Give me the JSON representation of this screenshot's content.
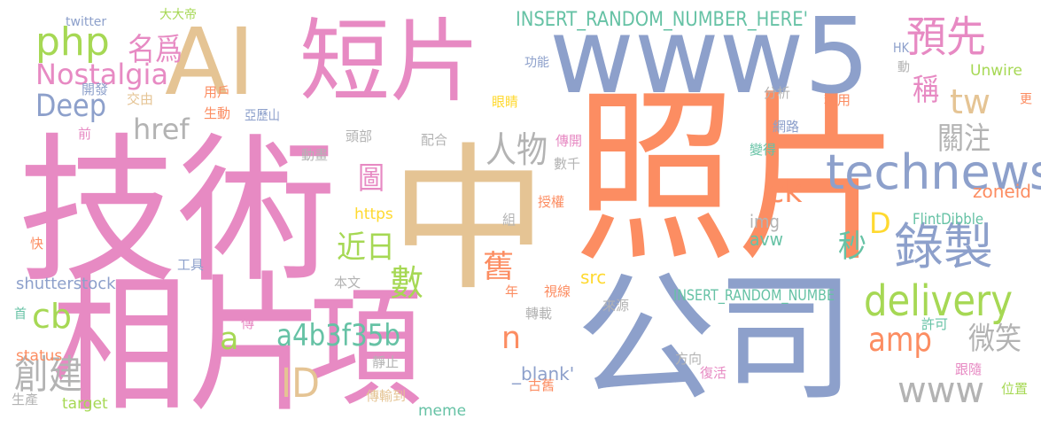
{
  "colors": {
    "pink": "#e78ac3",
    "blue": "#8da0cb",
    "orange": "#fc8d62",
    "green": "#66c2a5",
    "lime": "#a6d854",
    "yellow": "#ffd92f",
    "tan": "#e5c494",
    "gray": "#b3b3b3"
  },
  "words": [
    {
      "text": "照片",
      "color": "orange",
      "vertical": false
    },
    {
      "text": "技術",
      "color": "pink",
      "vertical": false
    },
    {
      "text": "中",
      "color": "tan",
      "vertical": false
    },
    {
      "text": "相片",
      "color": "pink",
      "vertical": false
    },
    {
      "text": "www5",
      "color": "blue",
      "vertical": false
    },
    {
      "text": "AI",
      "color": "tan",
      "vertical": false
    },
    {
      "text": "短片",
      "color": "pink",
      "vertical": false
    },
    {
      "text": "公司",
      "color": "blue",
      "vertical": false
    },
    {
      "text": "項",
      "color": "pink",
      "vertical": false
    },
    {
      "text": "technews",
      "color": "blue",
      "vertical": false
    },
    {
      "text": "delivery",
      "color": "lime",
      "vertical": false
    },
    {
      "text": "錄製",
      "color": "blue",
      "vertical": false
    },
    {
      "text": "預先",
      "color": "pink",
      "vertical": false
    },
    {
      "text": "www",
      "color": "gray",
      "vertical": false
    },
    {
      "text": "php",
      "color": "lime",
      "vertical": false
    },
    {
      "text": "Nostalgia",
      "color": "pink",
      "vertical": false
    },
    {
      "text": "人物",
      "color": "gray",
      "vertical": false
    },
    {
      "text": "amp",
      "color": "orange",
      "vertical": false
    },
    {
      "text": "名爲",
      "color": "pink",
      "vertical": false
    },
    {
      "text": "Deep",
      "color": "blue",
      "vertical": false
    },
    {
      "text": "href",
      "color": "gray",
      "vertical": false
    },
    {
      "text": "tw",
      "color": "tan",
      "vertical": false
    },
    {
      "text": "關注",
      "color": "gray",
      "vertical": false
    },
    {
      "text": "D",
      "color": "yellow",
      "vertical": false
    },
    {
      "text": "a4b3f35b",
      "color": "green",
      "vertical": false
    },
    {
      "text": "ID",
      "color": "tan",
      "vertical": false
    },
    {
      "text": "cb",
      "color": "lime",
      "vertical": false
    },
    {
      "text": "創建",
      "color": "gray",
      "vertical": false
    },
    {
      "text": "ck",
      "color": "orange",
      "vertical": false
    },
    {
      "text": "近日",
      "color": "lime",
      "vertical": false
    },
    {
      "text": "微笑",
      "color": "gray",
      "vertical": false
    },
    {
      "text": "稱",
      "color": "pink",
      "vertical": false
    },
    {
      "text": "數",
      "color": "lime",
      "vertical": false
    },
    {
      "text": "舊",
      "color": "orange",
      "vertical": false
    },
    {
      "text": "圖",
      "color": "pink",
      "vertical": false
    },
    {
      "text": "秒",
      "color": "green",
      "vertical": false
    },
    {
      "text": "n",
      "color": "orange",
      "vertical": false
    },
    {
      "text": "a",
      "color": "lime",
      "vertical": false
    },
    {
      "text": "INSERT_RANDOM_NUMBER_HERE'",
      "color": "green",
      "vertical": false
    },
    {
      "text": "INSERT_RANDOM_NUMBE",
      "color": "green",
      "vertical": false
    },
    {
      "text": "shutterstock",
      "color": "blue",
      "vertical": false
    },
    {
      "text": "zoneid",
      "color": "orange",
      "vertical": false
    },
    {
      "text": "img",
      "color": "gray",
      "vertical": false
    },
    {
      "text": "avw",
      "color": "green",
      "vertical": false
    },
    {
      "text": "src",
      "color": "yellow",
      "vertical": false
    },
    {
      "text": "_blank'",
      "color": "blue",
      "vertical": false
    },
    {
      "text": "target",
      "color": "lime",
      "vertical": false
    },
    {
      "text": "status",
      "color": "orange",
      "vertical": false
    },
    {
      "text": "meme",
      "color": "green",
      "vertical": false
    },
    {
      "text": "https",
      "color": "yellow",
      "vertical": false
    },
    {
      "text": "twitter",
      "color": "blue",
      "vertical": false
    },
    {
      "text": "Unwire",
      "color": "lime",
      "vertical": false
    },
    {
      "text": "FlintDibble",
      "color": "green",
      "vertical": false
    },
    {
      "text": "HK",
      "color": "blue",
      "vertical": false
    },
    {
      "text": "大大帝",
      "color": "lime",
      "vertical": false
    },
    {
      "text": "功能",
      "color": "blue",
      "vertical": false
    },
    {
      "text": "用戶",
      "color": "orange",
      "vertical": false
    },
    {
      "text": "開發",
      "color": "blue",
      "vertical": false
    },
    {
      "text": "交由",
      "color": "tan",
      "vertical": false
    },
    {
      "text": "眼睛",
      "color": "yellow",
      "vertical": false
    },
    {
      "text": "分析",
      "color": "gray",
      "vertical": false
    },
    {
      "text": "利用",
      "color": "orange",
      "vertical": false
    },
    {
      "text": "生動",
      "color": "orange",
      "vertical": false
    },
    {
      "text": "亞歷山",
      "color": "blue",
      "vertical": false
    },
    {
      "text": "網路",
      "color": "blue",
      "vertical": false
    },
    {
      "text": "前",
      "color": "pink",
      "vertical": false
    },
    {
      "text": "頭部",
      "color": "gray",
      "vertical": false
    },
    {
      "text": "配合",
      "color": "gray",
      "vertical": false
    },
    {
      "text": "傳開",
      "color": "pink",
      "vertical": false
    },
    {
      "text": "變得",
      "color": "green",
      "vertical": false
    },
    {
      "text": "動畫",
      "color": "gray",
      "vertical": false
    },
    {
      "text": "數千",
      "color": "gray",
      "vertical": false
    },
    {
      "text": "授權",
      "color": "orange",
      "vertical": false
    },
    {
      "text": "工具",
      "color": "blue",
      "vertical": false
    },
    {
      "text": "組",
      "color": "gray",
      "vertical": false
    },
    {
      "text": "本文",
      "color": "gray",
      "vertical": false
    },
    {
      "text": "年",
      "color": "orange",
      "vertical": false
    },
    {
      "text": "視線",
      "color": "orange",
      "vertical": false
    },
    {
      "text": "來源",
      "color": "gray",
      "vertical": false
    },
    {
      "text": "許可",
      "color": "green",
      "vertical": false
    },
    {
      "text": "首",
      "color": "green",
      "vertical": false
    },
    {
      "text": "傳",
      "color": "pink",
      "vertical": false
    },
    {
      "text": "轉載",
      "color": "gray",
      "vertical": false
    },
    {
      "text": "靜止",
      "color": "gray",
      "vertical": false
    },
    {
      "text": "方向",
      "color": "gray",
      "vertical": false
    },
    {
      "text": "跟隨",
      "color": "pink",
      "vertical": false
    },
    {
      "text": "位置",
      "color": "lime",
      "vertical": false
    },
    {
      "text": "復活",
      "color": "pink",
      "vertical": false
    },
    {
      "text": "古舊",
      "color": "orange",
      "vertical": false
    },
    {
      "text": "傳輸到",
      "color": "tan",
      "vertical": false
    },
    {
      "text": "生產",
      "color": "gray",
      "vertical": false
    },
    {
      "text": "快",
      "color": "orange",
      "vertical": false
    },
    {
      "text": "更",
      "color": "orange",
      "vertical": true
    },
    {
      "text": "動",
      "color": "gray",
      "vertical": true
    }
  ]
}
